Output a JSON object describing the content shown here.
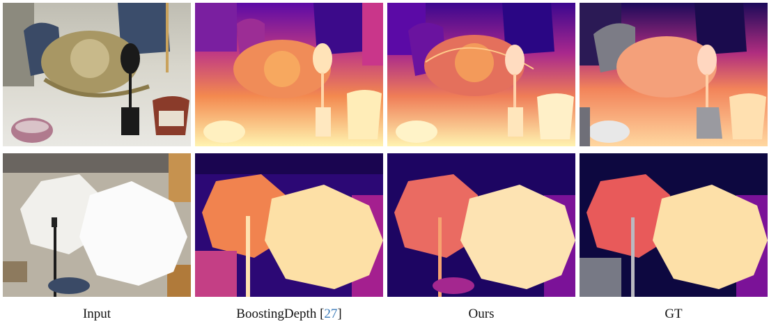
{
  "figure": {
    "columns": [
      {
        "label": "Input",
        "citation": ""
      },
      {
        "label": "BoostingDepth [",
        "citation": "27",
        "suffix": "]"
      },
      {
        "label": "Ours",
        "citation": ""
      },
      {
        "label": "GT",
        "citation": ""
      }
    ],
    "rows": [
      {
        "scene": "straw hat, mask statue, baskets, office chairs"
      },
      {
        "scene": "two photo umbrellas on stand, office room"
      }
    ],
    "colormap": [
      "#0d0887",
      "#5b0aa6",
      "#b12a90",
      "#e16462",
      "#fca636",
      "#fff3b0"
    ]
  }
}
